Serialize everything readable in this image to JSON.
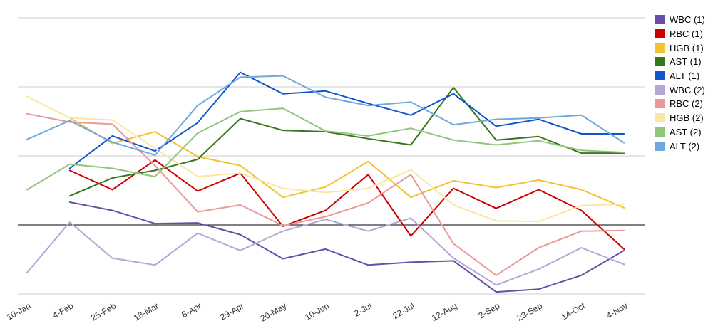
{
  "background": "#ffffff",
  "axis_label_color": "#333333",
  "chart_data": {
    "type": "line",
    "title": "",
    "xlabel": "",
    "ylabel": "",
    "grid": "horizontal-only",
    "x_tick_rotation_deg": -30,
    "categories": [
      "10-Jan",
      "4-Feb",
      "25-Feb",
      "18-Mar",
      "8-Apr",
      "29-Apr",
      "20-May",
      "10-Jun",
      "2-Jul",
      "22-Jul",
      "12-Aug",
      "2-Sep",
      "23-Sep",
      "14-Oct",
      "4-Nov"
    ],
    "y_axis": {
      "labels_visible": false,
      "gridline_values": [
        -1,
        0,
        1,
        2,
        3
      ],
      "baseline_value": 0,
      "baseline_color": "#000000",
      "gridline_color": "#cccccc",
      "ylim": [
        -1.05,
        3.0
      ]
    },
    "legend": {
      "position": "right",
      "entries": [
        "WBC (1)",
        "RBC (1)",
        "HGB (1)",
        "AST (1)",
        "ALT (1)",
        "WBC (2)",
        "RBC (2)",
        "HGB (2)",
        "AST (2)",
        "ALT (2)"
      ]
    },
    "series": [
      {
        "name": "WBC (1)",
        "color": "#674EA7",
        "values": [
          null,
          0.33,
          0.21,
          0.02,
          0.03,
          -0.14,
          -0.49,
          -0.35,
          -0.58,
          -0.54,
          -0.52,
          -0.97,
          -0.93,
          -0.73,
          -0.37
        ]
      },
      {
        "name": "RBC (1)",
        "color": "#CC0000",
        "values": [
          null,
          0.79,
          0.51,
          0.94,
          0.49,
          0.75,
          -0.02,
          0.21,
          0.73,
          -0.16,
          0.53,
          0.24,
          0.51,
          0.21,
          -0.35
        ]
      },
      {
        "name": "HGB (1)",
        "color": "#F1C232",
        "values": [
          null,
          1.55,
          1.18,
          1.35,
          0.99,
          0.86,
          0.4,
          0.55,
          0.92,
          0.4,
          0.64,
          0.54,
          0.65,
          0.51,
          0.25
        ]
      },
      {
        "name": "AST (1)",
        "color": "#38761D",
        "values": [
          null,
          0.42,
          0.68,
          0.79,
          0.95,
          1.54,
          1.37,
          1.35,
          1.25,
          1.16,
          1.99,
          1.23,
          1.28,
          1.04,
          1.04
        ]
      },
      {
        "name": "ALT (1)",
        "color": "#1155CC",
        "values": [
          null,
          0.82,
          1.29,
          1.07,
          1.48,
          2.21,
          1.9,
          1.94,
          1.76,
          1.59,
          1.9,
          1.43,
          1.53,
          1.32,
          1.32
        ]
      },
      {
        "name": "WBC (2)",
        "color": "#B4A7D6",
        "values": [
          -0.69,
          0.04,
          -0.48,
          -0.58,
          -0.12,
          -0.37,
          -0.09,
          0.08,
          -0.09,
          0.1,
          -0.48,
          -0.87,
          -0.64,
          -0.33,
          -0.57
        ]
      },
      {
        "name": "RBC (2)",
        "color": "#EA9999",
        "values": [
          1.61,
          1.49,
          1.46,
          0.86,
          0.19,
          0.29,
          -0.01,
          0.12,
          0.32,
          0.73,
          -0.27,
          -0.73,
          -0.33,
          -0.09,
          -0.08
        ]
      },
      {
        "name": "HGB (2)",
        "color": "#FBE5A3",
        "values": [
          1.86,
          1.55,
          1.52,
          1.11,
          0.7,
          0.75,
          0.53,
          0.47,
          0.53,
          0.8,
          0.29,
          0.06,
          0.05,
          0.28,
          0.3
        ]
      },
      {
        "name": "AST (2)",
        "color": "#93C47D",
        "values": [
          0.51,
          0.88,
          0.82,
          0.7,
          1.33,
          1.64,
          1.69,
          1.36,
          1.29,
          1.4,
          1.23,
          1.16,
          1.22,
          1.08,
          1.05
        ]
      },
      {
        "name": "ALT (2)",
        "color": "#6FA8DC",
        "values": [
          1.24,
          1.51,
          1.2,
          1.01,
          1.73,
          2.14,
          2.16,
          1.85,
          1.73,
          1.78,
          1.45,
          1.53,
          1.55,
          1.59,
          1.19
        ]
      }
    ]
  }
}
